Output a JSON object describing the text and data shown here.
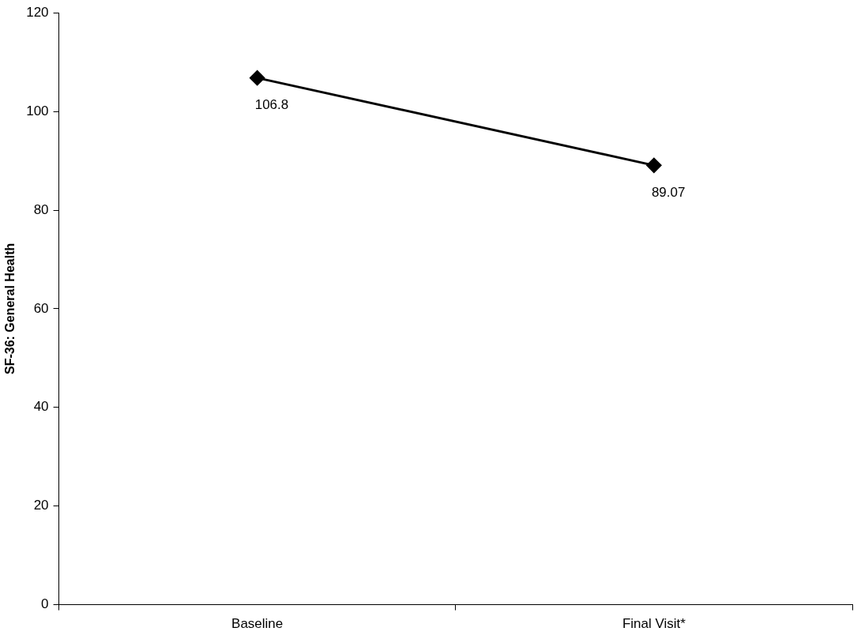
{
  "chart_data": {
    "type": "line",
    "ylabel": "SF-36: General Health",
    "categories": [
      "Baseline",
      "Final Visit*"
    ],
    "series": [
      {
        "color": "#000000",
        "values": [
          106.8,
          89.07
        ]
      }
    ],
    "ylim": [
      0,
      120
    ],
    "yticks": [
      0,
      20,
      40,
      60,
      80,
      100,
      120
    ],
    "grid": false,
    "legend": false,
    "marker": "diamond",
    "line_style": "solid",
    "data_labels": true
  }
}
